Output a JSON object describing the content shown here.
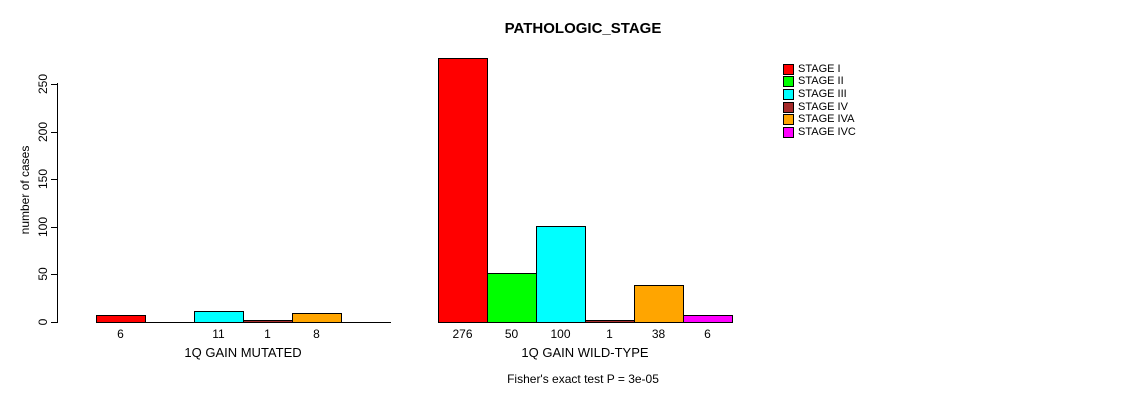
{
  "chart_data": {
    "type": "bar",
    "title": "PATHOLOGIC_STAGE",
    "ylabel": "number of cases",
    "footer": "Fisher's exact test P = 3e-05",
    "yticks": [
      0,
      50,
      100,
      150,
      200,
      250
    ],
    "ylim": [
      0,
      290
    ],
    "grid": false,
    "legend_position": "right-outside",
    "categories": [
      "STAGE I",
      "STAGE II",
      "STAGE III",
      "STAGE IV",
      "STAGE IVA",
      "STAGE IVC"
    ],
    "colors": [
      "#FF0000",
      "#00FF00",
      "#00FFFF",
      "#A52A2A",
      "#FFA500",
      "#FF00FF"
    ],
    "groups": [
      {
        "label": "1Q GAIN MUTATED",
        "values": [
          6,
          0,
          11,
          1,
          8,
          0
        ]
      },
      {
        "label": "1Q GAIN WILD-TYPE",
        "values": [
          276,
          50,
          100,
          1,
          38,
          6
        ]
      }
    ],
    "bar_value_labels_shown_for_zero": false
  }
}
